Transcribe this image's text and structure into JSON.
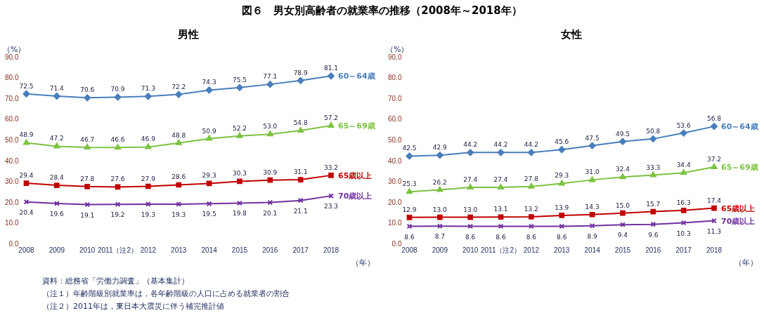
{
  "chart_data": [
    {
      "type": "line",
      "title": "図６　男女別高齢者の就業率の推移（2008年～2018年）",
      "subtitle": "男性",
      "ylabel": "（%）",
      "xlabel": "（年）",
      "categories": [
        "2008",
        "2009",
        "2010",
        "2011（注2）",
        "2012",
        "2013",
        "2014",
        "2015",
        "2016",
        "2017",
        "2018"
      ],
      "ylim": [
        0,
        90
      ],
      "yticks": [
        {
          "value": 0,
          "label": "0.0"
        },
        {
          "value": 10,
          "label": "10.0"
        },
        {
          "value": 20,
          "label": "20.0"
        },
        {
          "value": 30,
          "label": "30.0"
        },
        {
          "value": 40,
          "label": "40.0"
        },
        {
          "value": 50,
          "label": "50.0"
        },
        {
          "value": 60,
          "label": "60.0"
        },
        {
          "value": 70,
          "label": "70.0"
        },
        {
          "value": 80,
          "label": "80.0"
        },
        {
          "value": 90,
          "label": "90.0"
        }
      ],
      "grid": false,
      "legend": false,
      "data_labels": true,
      "line_style": "solid",
      "series": [
        {
          "name": "60～64歳",
          "color": "#4a7ebb",
          "marker": "diamond",
          "values": [
            72.5,
            71.4,
            70.6,
            70.9,
            71.3,
            72.2,
            74.3,
            75.5,
            77.1,
            78.9,
            81.1
          ]
        },
        {
          "name": "65～69歳",
          "color": "#7dc242",
          "marker": "triangle",
          "values": [
            48.9,
            47.2,
            46.7,
            46.6,
            46.9,
            48.8,
            50.9,
            52.2,
            53.0,
            54.8,
            57.2
          ],
          "value_labels": [
            "48.9",
            "47.2",
            "46.7",
            "46.6",
            "46.9",
            "48.8",
            "50.9",
            "52.2",
            "53.0",
            "54.8",
            "57.2"
          ]
        },
        {
          "name": "65歳以上",
          "color": "#c00000",
          "marker": "square",
          "values": [
            29.4,
            28.4,
            27.8,
            27.6,
            27.9,
            28.6,
            29.3,
            30.3,
            30.9,
            31.1,
            33.2
          ]
        },
        {
          "name": "70歳以上",
          "color": "#7030a0",
          "marker": "cross",
          "values": [
            20.4,
            19.6,
            19.1,
            19.2,
            19.3,
            19.3,
            19.5,
            19.8,
            20.1,
            21.1,
            23.3
          ]
        }
      ],
      "annotations": [
        "資料：総務省「労働力調査」（基本集計）",
        "（注１）年齢階級別就業率は，各年齢階級の人口に占める就業者の割合",
        "（注２）2011年は，東日本大震災に伴う補完推計値"
      ]
    },
    {
      "type": "line",
      "subtitle": "女性",
      "ylabel": "（%）",
      "xlabel": "（年）",
      "categories": [
        "2008",
        "2009",
        "2010",
        "2011（注2）",
        "2012",
        "2013",
        "2014",
        "2015",
        "2016",
        "2017",
        "2018"
      ],
      "ylim": [
        0,
        90
      ],
      "yticks": [
        {
          "value": 0,
          "label": "0.0"
        },
        {
          "value": 10,
          "label": "10.0"
        },
        {
          "value": 20,
          "label": "20.0"
        },
        {
          "value": 30,
          "label": "30.0"
        },
        {
          "value": 40,
          "label": "40.0"
        },
        {
          "value": 50,
          "label": "50.0"
        },
        {
          "value": 60,
          "label": "60.0"
        },
        {
          "value": 70,
          "label": "70.0"
        },
        {
          "value": 80,
          "label": "80.0"
        },
        {
          "value": 90,
          "label": "90.0"
        }
      ],
      "grid": false,
      "legend": false,
      "data_labels": true,
      "line_style": "solid",
      "series": [
        {
          "name": "60～64歳",
          "color": "#4a7ebb",
          "marker": "diamond",
          "values": [
            42.5,
            42.9,
            44.2,
            44.2,
            44.2,
            45.6,
            47.5,
            49.5,
            50.8,
            53.6,
            56.8
          ]
        },
        {
          "name": "65～69歳",
          "color": "#7dc242",
          "marker": "triangle",
          "values": [
            25.3,
            26.2,
            27.4,
            27.4,
            27.8,
            29.3,
            31.0,
            32.4,
            33.3,
            34.4,
            37.2
          ],
          "value_labels": [
            "25.3",
            "26.2",
            "27.4",
            "27.4",
            "27.8",
            "29.3",
            "31.0",
            "32.4",
            "33.3",
            "34.4",
            "37.2"
          ]
        },
        {
          "name": "65歳以上",
          "color": "#c00000",
          "marker": "square",
          "values": [
            12.9,
            13.0,
            13.0,
            13.1,
            13.2,
            13.9,
            14.3,
            15.0,
            15.7,
            16.3,
            17.4
          ],
          "value_labels": [
            "12.9",
            "13.0",
            "13.0",
            "13.1",
            "13.2",
            "13.9",
            "14.3",
            "15.0",
            "15.7",
            "16.3",
            "17.4"
          ]
        },
        {
          "name": "70歳以上",
          "color": "#7030a0",
          "marker": "cross",
          "values": [
            8.6,
            8.7,
            8.6,
            8.6,
            8.6,
            8.6,
            8.9,
            9.4,
            9.6,
            10.3,
            11.3
          ]
        }
      ]
    }
  ]
}
